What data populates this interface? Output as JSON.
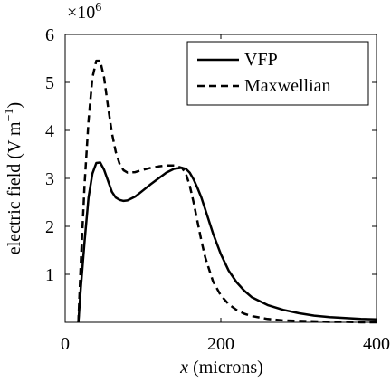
{
  "chart_data": {
    "type": "line",
    "xlabel_var": "x",
    "xlabel_rest": " (microns)",
    "ylabel": "electric field (V m",
    "ylabel_exp": "−1",
    "ylabel_close": ")",
    "y_multiplier_base": "×10",
    "y_multiplier_exp": "6",
    "xlim": [
      0,
      400
    ],
    "ylim": [
      0,
      6
    ],
    "xticks": [
      0,
      200,
      400
    ],
    "yticks": [
      1,
      2,
      3,
      4,
      5,
      6
    ],
    "grid": false,
    "legend_position": "top-right",
    "series": [
      {
        "name": "VFP",
        "dash": "solid",
        "x": [
          17,
          20,
          25,
          30,
          35,
          40,
          45,
          50,
          55,
          60,
          65,
          70,
          75,
          80,
          90,
          100,
          110,
          120,
          130,
          140,
          150,
          155,
          160,
          165,
          170,
          175,
          180,
          190,
          200,
          210,
          220,
          230,
          240,
          260,
          280,
          300,
          320,
          340,
          360,
          380,
          400
        ],
        "y": [
          0,
          0.7,
          1.7,
          2.6,
          3.1,
          3.32,
          3.33,
          3.18,
          2.95,
          2.72,
          2.6,
          2.55,
          2.53,
          2.54,
          2.62,
          2.75,
          2.88,
          3.0,
          3.12,
          3.2,
          3.22,
          3.2,
          3.12,
          2.98,
          2.8,
          2.6,
          2.35,
          1.85,
          1.42,
          1.08,
          0.84,
          0.66,
          0.52,
          0.36,
          0.26,
          0.19,
          0.14,
          0.11,
          0.09,
          0.07,
          0.06
        ]
      },
      {
        "name": "Maxwellian",
        "dash": "dashed",
        "x": [
          17,
          20,
          25,
          30,
          35,
          40,
          45,
          50,
          55,
          60,
          65,
          70,
          75,
          80,
          90,
          100,
          110,
          120,
          130,
          140,
          150,
          155,
          160,
          165,
          170,
          175,
          180,
          190,
          200,
          210,
          220,
          230,
          240,
          260,
          280,
          300,
          320,
          340,
          360,
          380,
          400
        ],
        "y": [
          0,
          1.2,
          2.9,
          4.2,
          5.1,
          5.45,
          5.45,
          5.1,
          4.5,
          3.95,
          3.55,
          3.3,
          3.17,
          3.12,
          3.13,
          3.18,
          3.22,
          3.25,
          3.27,
          3.27,
          3.22,
          3.1,
          2.85,
          2.5,
          2.1,
          1.7,
          1.35,
          0.85,
          0.56,
          0.38,
          0.26,
          0.18,
          0.13,
          0.07,
          0.04,
          0.03,
          0.02,
          0.01,
          0.01,
          0.0,
          0.0
        ]
      }
    ]
  }
}
